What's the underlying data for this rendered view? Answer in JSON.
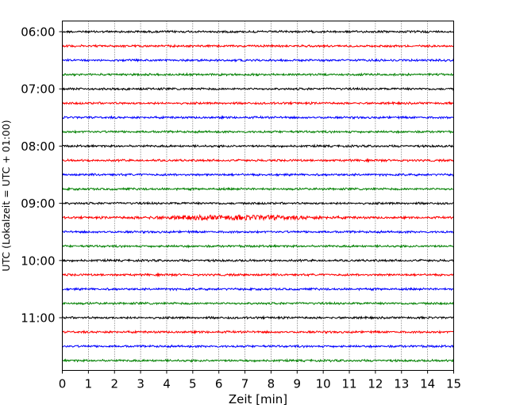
{
  "chart_data": {
    "type": "line",
    "xlabel": "Zeit  [min]",
    "ylabel": "UTC (Lokalzeit = UTC + 01:00)",
    "xlim": [
      0,
      15
    ],
    "x_ticks": [
      "0",
      "1",
      "2",
      "3",
      "4",
      "5",
      "6",
      "7",
      "8",
      "9",
      "10",
      "11",
      "12",
      "13",
      "14",
      "15"
    ],
    "y_ticks": [
      "06:00",
      "07:00",
      "08:00",
      "09:00",
      "10:00",
      "11:00"
    ],
    "grid": "vertical dotted",
    "trace_interval_minutes": 15,
    "trace_colors": [
      "#000000",
      "#ff0000",
      "#0000ff",
      "#008000"
    ],
    "series": [
      {
        "start": "06:00",
        "color": "#000000"
      },
      {
        "start": "06:15",
        "color": "#ff0000"
      },
      {
        "start": "06:30",
        "color": "#0000ff"
      },
      {
        "start": "06:45",
        "color": "#008000"
      },
      {
        "start": "07:00",
        "color": "#000000"
      },
      {
        "start": "07:15",
        "color": "#ff0000"
      },
      {
        "start": "07:30",
        "color": "#0000ff"
      },
      {
        "start": "07:45",
        "color": "#008000"
      },
      {
        "start": "08:00",
        "color": "#000000"
      },
      {
        "start": "08:15",
        "color": "#ff0000"
      },
      {
        "start": "08:30",
        "color": "#0000ff"
      },
      {
        "start": "08:45",
        "color": "#008000"
      },
      {
        "start": "09:00",
        "color": "#000000"
      },
      {
        "start": "09:15",
        "color": "#ff0000"
      },
      {
        "start": "09:30",
        "color": "#0000ff"
      },
      {
        "start": "09:45",
        "color": "#008000"
      },
      {
        "start": "10:00",
        "color": "#000000"
      },
      {
        "start": "10:15",
        "color": "#ff0000"
      },
      {
        "start": "10:30",
        "color": "#0000ff"
      },
      {
        "start": "10:45",
        "color": "#008000"
      },
      {
        "start": "11:00",
        "color": "#000000"
      },
      {
        "start": "11:15",
        "color": "#ff0000"
      },
      {
        "start": "11:30",
        "color": "#0000ff"
      },
      {
        "start": "11:45",
        "color": "#008000"
      }
    ]
  }
}
